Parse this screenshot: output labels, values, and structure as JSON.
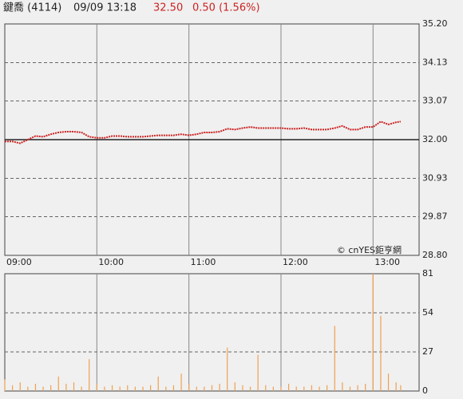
{
  "header": {
    "name": "鍵喬 (4114)",
    "datetime": "09/09 13:18",
    "price": "32.50",
    "change": "0.50 (1.56%)"
  },
  "chart_data": [
    {
      "type": "line",
      "credit": "© cnYES鉅亨網",
      "x": [
        "09:00",
        "09:05",
        "09:10",
        "09:15",
        "09:20",
        "09:25",
        "09:30",
        "09:35",
        "09:40",
        "09:45",
        "09:50",
        "09:55",
        "10:00",
        "10:05",
        "10:10",
        "10:15",
        "10:20",
        "10:25",
        "10:30",
        "10:35",
        "10:40",
        "10:45",
        "10:50",
        "10:55",
        "11:00",
        "11:05",
        "11:10",
        "11:15",
        "11:20",
        "11:25",
        "11:30",
        "11:35",
        "11:40",
        "11:45",
        "11:50",
        "11:55",
        "12:00",
        "12:05",
        "12:10",
        "12:15",
        "12:20",
        "12:25",
        "12:30",
        "12:35",
        "12:40",
        "12:45",
        "12:50",
        "12:55",
        "13:00",
        "13:05",
        "13:10",
        "13:15",
        "13:18"
      ],
      "series": [
        {
          "color": "#cc2222",
          "values": [
            31.95,
            31.95,
            31.9,
            32.0,
            32.1,
            32.08,
            32.15,
            32.2,
            32.22,
            32.22,
            32.2,
            32.08,
            32.05,
            32.05,
            32.1,
            32.1,
            32.08,
            32.08,
            32.08,
            32.1,
            32.12,
            32.12,
            32.12,
            32.15,
            32.12,
            32.15,
            32.2,
            32.2,
            32.22,
            32.3,
            32.28,
            32.32,
            32.35,
            32.32,
            32.32,
            32.32,
            32.32,
            32.3,
            32.3,
            32.32,
            32.28,
            32.28,
            32.28,
            32.32,
            32.38,
            32.28,
            32.28,
            32.35,
            32.35,
            32.5,
            32.42,
            32.48,
            32.5
          ]
        }
      ],
      "xlim": [
        "09:00",
        "13:30"
      ],
      "xticks": [
        "09:00",
        "10:00",
        "11:00",
        "12:00",
        "13:00"
      ],
      "ylim": [
        28.8,
        35.2
      ],
      "yticks": [
        {
          "value": 28.8,
          "label": "28.80"
        },
        29.87,
        30.93,
        {
          "value": 32,
          "label": "32.00"
        },
        33.07,
        34.13,
        {
          "value": 35.2,
          "label": "35.20"
        }
      ],
      "reference_line": 32,
      "grid": true
    },
    {
      "type": "bar",
      "color": "#f0a050",
      "x": [
        "09:00",
        "09:05",
        "09:10",
        "09:15",
        "09:20",
        "09:25",
        "09:30",
        "09:35",
        "09:40",
        "09:45",
        "09:50",
        "09:55",
        "10:00",
        "10:05",
        "10:10",
        "10:15",
        "10:20",
        "10:25",
        "10:30",
        "10:35",
        "10:40",
        "10:45",
        "10:50",
        "10:55",
        "11:00",
        "11:05",
        "11:10",
        "11:15",
        "11:20",
        "11:25",
        "11:30",
        "11:35",
        "11:40",
        "11:45",
        "11:50",
        "11:55",
        "12:00",
        "12:05",
        "12:10",
        "12:15",
        "12:20",
        "12:25",
        "12:30",
        "12:35",
        "12:40",
        "12:45",
        "12:50",
        "12:55",
        "13:00",
        "13:05",
        "13:10",
        "13:15",
        "13:18"
      ],
      "values": [
        8,
        4,
        6,
        3,
        5,
        3,
        4,
        10,
        5,
        6,
        3,
        22,
        5,
        3,
        4,
        3,
        4,
        3,
        3,
        4,
        10,
        3,
        4,
        12,
        5,
        3,
        3,
        4,
        5,
        30,
        6,
        4,
        3,
        25,
        4,
        3,
        3,
        5,
        3,
        3,
        4,
        3,
        4,
        45,
        6,
        3,
        4,
        5,
        81,
        52,
        12,
        6,
        4
      ],
      "xlim": [
        "09:00",
        "13:30"
      ],
      "ylim": [
        0,
        81
      ],
      "yticks": [
        0,
        27,
        54,
        81
      ],
      "grid": true
    }
  ]
}
